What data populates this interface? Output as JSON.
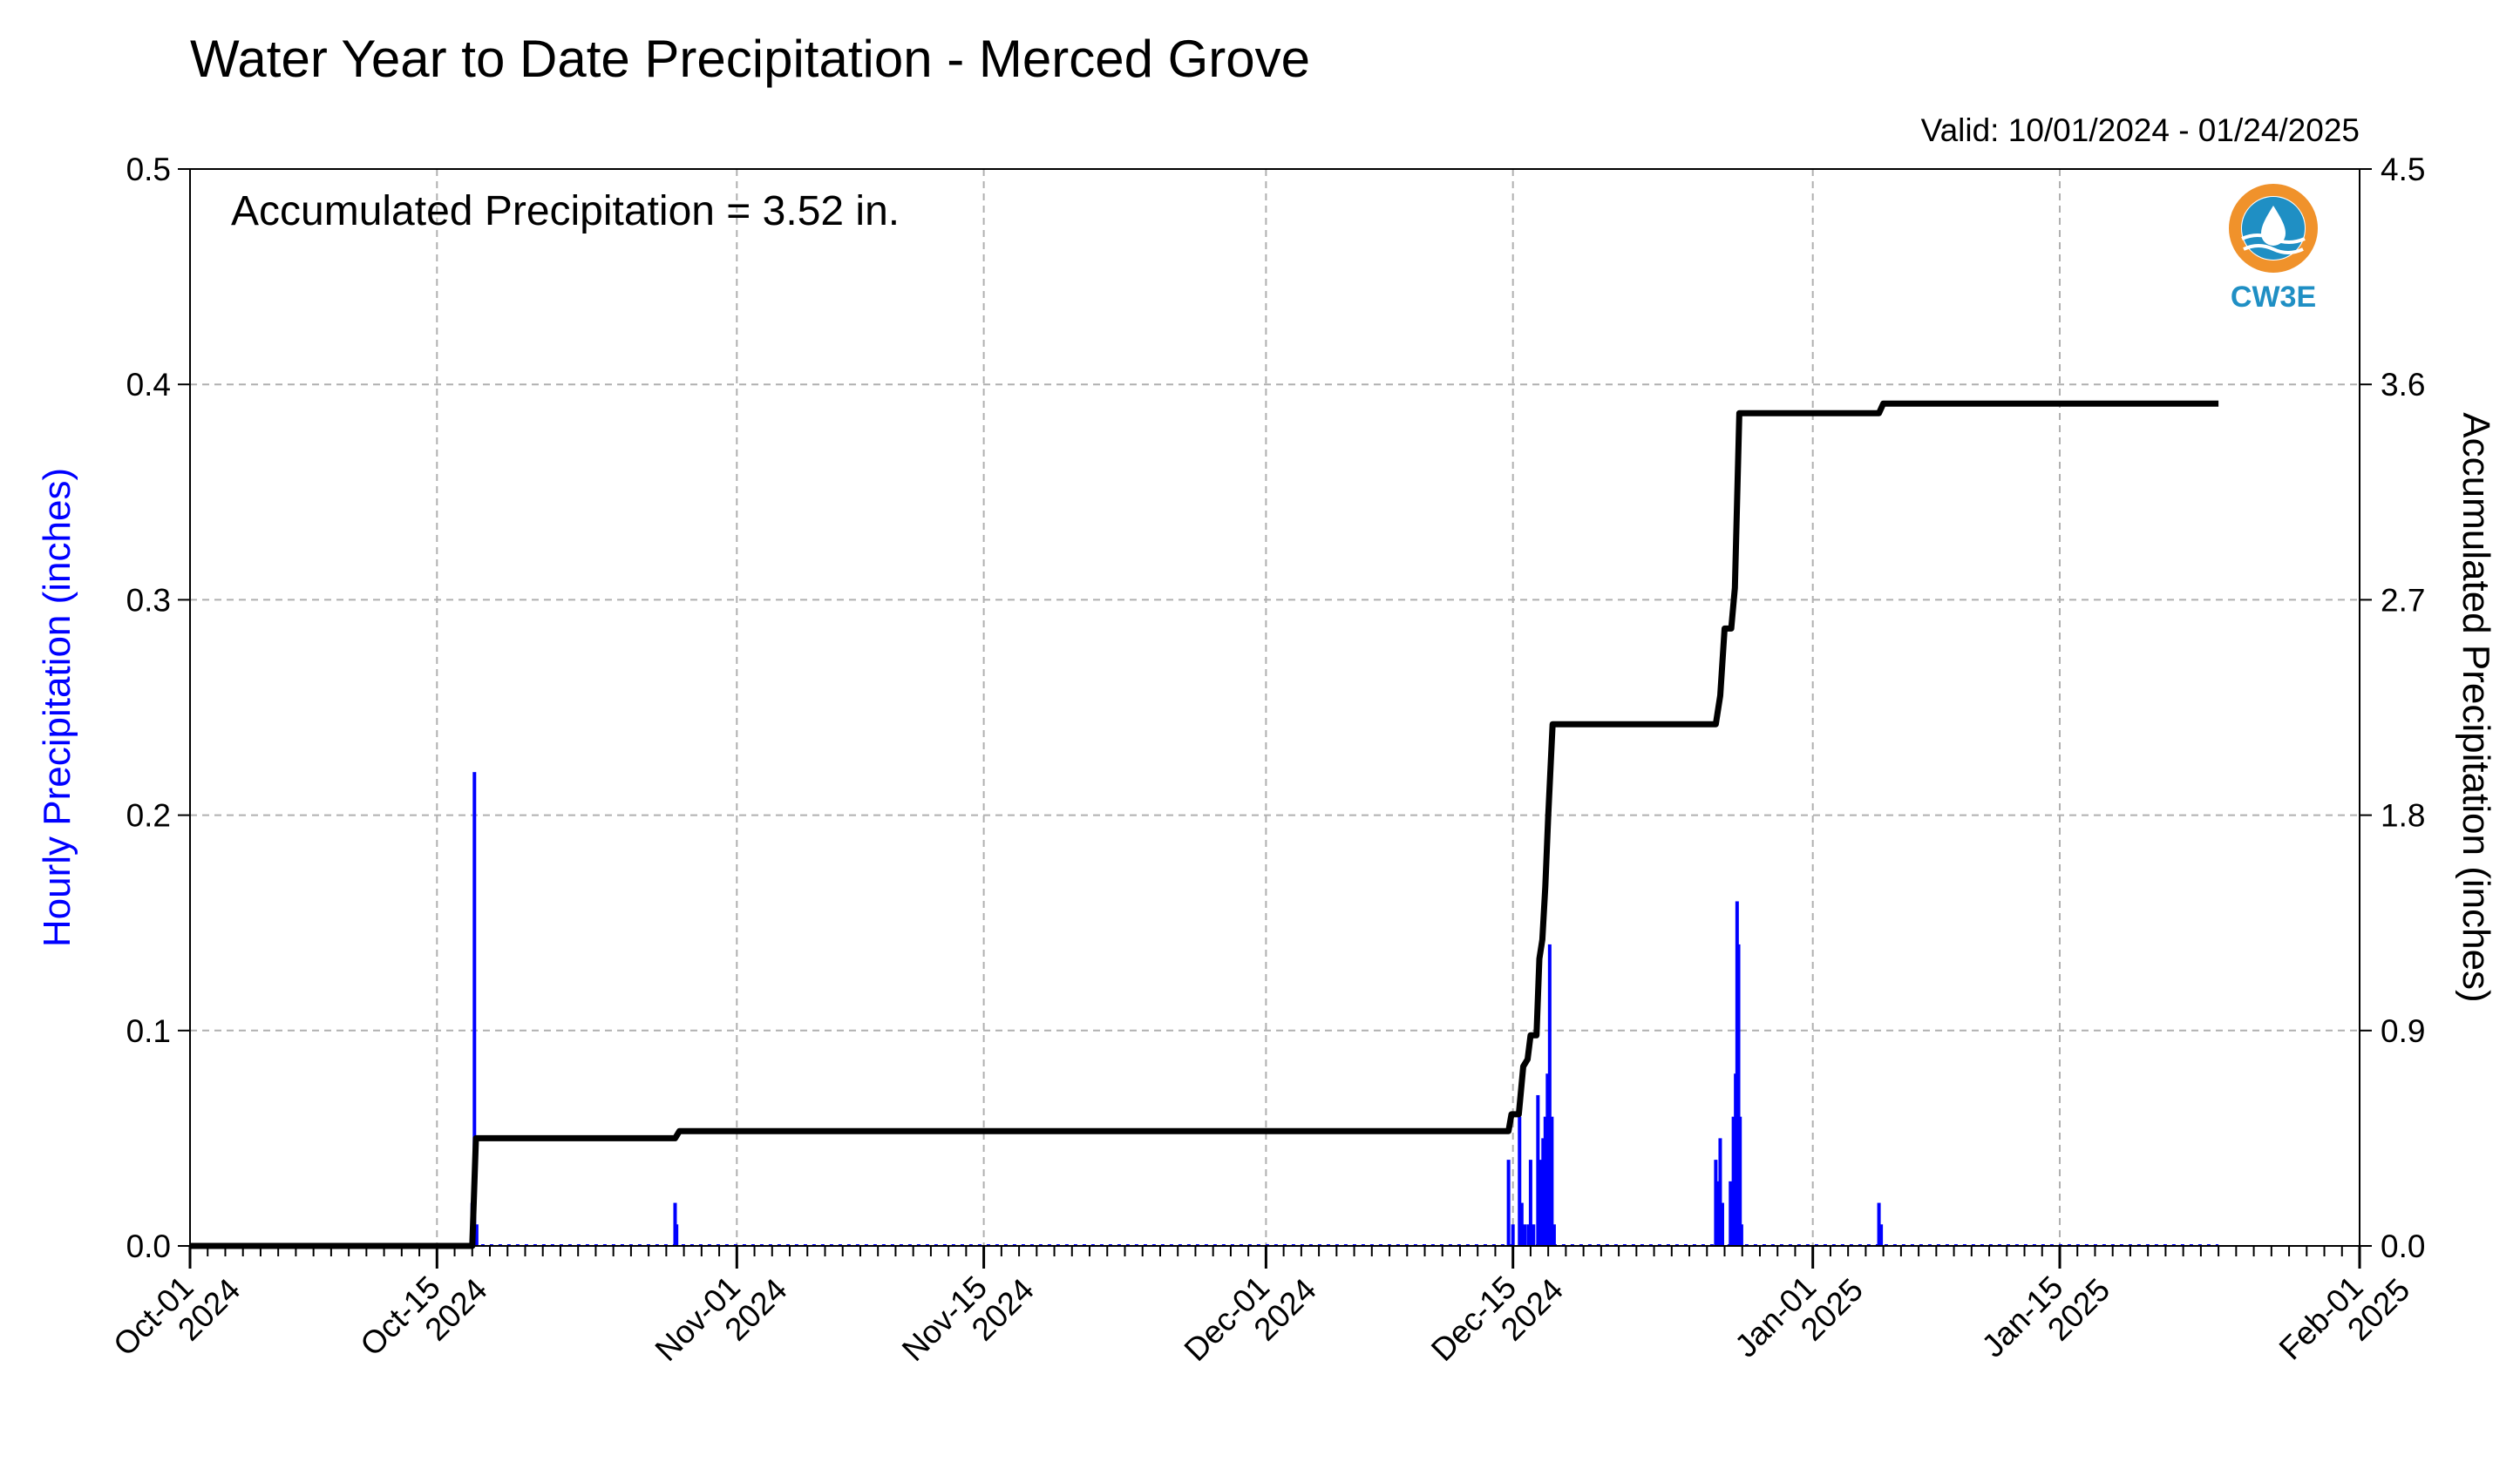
{
  "page": {
    "title": "Water Year to Date Precipitation - Merced Grove",
    "valid_text": "Valid: 10/01/2024 - 01/24/2025",
    "annotation": "Accumulated Precipitation = 3.52 in.",
    "logo_text": "CW3E"
  },
  "colors": {
    "bars": "#0000ff",
    "accum_line": "#000000",
    "grid": "#b0b0b0",
    "left_axis_label": "#0000ff",
    "logo_orange": "#f0922b",
    "logo_blue": "#1f8fc4"
  },
  "chart_data": {
    "type": "bar",
    "x_axis": {
      "type": "date",
      "range": [
        "2024-10-01",
        "2025-02-01"
      ],
      "major_ticks": [
        "2024-10-01",
        "2024-10-15",
        "2024-11-01",
        "2024-11-15",
        "2024-12-01",
        "2024-12-15",
        "2025-01-01",
        "2025-01-15",
        "2025-02-01"
      ],
      "major_tick_labels": [
        [
          "Oct-01",
          "2024"
        ],
        [
          "Oct-15",
          "2024"
        ],
        [
          "Nov-01",
          "2024"
        ],
        [
          "Nov-15",
          "2024"
        ],
        [
          "Dec-01",
          "2024"
        ],
        [
          "Dec-15",
          "2024"
        ],
        [
          "Jan-01",
          "2025"
        ],
        [
          "Jan-15",
          "2025"
        ],
        [
          "Feb-01",
          "2025"
        ]
      ],
      "minor_ticks": "daily"
    },
    "y_left": {
      "label": "Hourly Precipitation (inches)",
      "range": [
        0.0,
        0.5
      ],
      "ticks": [
        0.0,
        0.1,
        0.2,
        0.3,
        0.4,
        0.5
      ],
      "tick_labels": [
        "0.0",
        "0.1",
        "0.2",
        "0.3",
        "0.4",
        "0.5"
      ]
    },
    "y_right": {
      "label": "Accumulated Precipitation (inches)",
      "range": [
        0.0,
        4.5
      ],
      "ticks": [
        0.0,
        0.9,
        1.8,
        2.7,
        3.6,
        4.5
      ],
      "tick_labels": [
        "0.0",
        "0.9",
        "1.8",
        "2.7",
        "3.6",
        "4.5"
      ]
    },
    "grid": true,
    "series": [
      {
        "name": "Hourly Precipitation",
        "kind": "bar",
        "axis": "left",
        "data_end": "2025-01-24",
        "points": [
          [
            "2024-10-17T00:00",
            0.02
          ],
          [
            "2024-10-17T03:00",
            0.22
          ],
          [
            "2024-10-17T06:00",
            0.01
          ],
          [
            "2024-10-28T12:00",
            0.02
          ],
          [
            "2024-10-28T14:00",
            0.01
          ],
          [
            "2024-12-14T18:00",
            0.04
          ],
          [
            "2024-12-15T00:00",
            0.01
          ],
          [
            "2024-12-15T09:00",
            0.06
          ],
          [
            "2024-12-15T12:00",
            0.02
          ],
          [
            "2024-12-15T16:00",
            0.01
          ],
          [
            "2024-12-15T21:00",
            0.01
          ],
          [
            "2024-12-16T00:00",
            0.04
          ],
          [
            "2024-12-16T04:00",
            0.01
          ],
          [
            "2024-12-16T10:00",
            0.07
          ],
          [
            "2024-12-16T14:00",
            0.04
          ],
          [
            "2024-12-16T17:00",
            0.05
          ],
          [
            "2024-12-16T20:00",
            0.06
          ],
          [
            "2024-12-16T23:00",
            0.08
          ],
          [
            "2024-12-17T02:00",
            0.14
          ],
          [
            "2024-12-17T05:00",
            0.06
          ],
          [
            "2024-12-17T08:00",
            0.01
          ],
          [
            "2024-12-26T12:00",
            0.04
          ],
          [
            "2024-12-26T15:00",
            0.03
          ],
          [
            "2024-12-26T18:00",
            0.05
          ],
          [
            "2024-12-26T21:00",
            0.02
          ],
          [
            "2024-12-27T08:00",
            0.03
          ],
          [
            "2024-12-27T12:00",
            0.06
          ],
          [
            "2024-12-27T15:00",
            0.08
          ],
          [
            "2024-12-27T17:00",
            0.16
          ],
          [
            "2024-12-27T19:00",
            0.14
          ],
          [
            "2024-12-27T21:00",
            0.06
          ],
          [
            "2024-12-27T23:00",
            0.01
          ],
          [
            "2025-01-04T18:00",
            0.02
          ],
          [
            "2025-01-04T21:00",
            0.01
          ]
        ]
      },
      {
        "name": "Accumulated Precipitation",
        "kind": "line",
        "axis": "right",
        "points": [
          [
            "2024-10-01T00:00",
            0.0
          ],
          [
            "2024-10-17T00:00",
            0.0
          ],
          [
            "2024-10-17T05:00",
            0.45
          ],
          [
            "2024-10-28T12:00",
            0.45
          ],
          [
            "2024-10-28T18:00",
            0.48
          ],
          [
            "2024-12-14T18:00",
            0.48
          ],
          [
            "2024-12-14T22:00",
            0.55
          ],
          [
            "2024-12-15T08:00",
            0.55
          ],
          [
            "2024-12-15T14:00",
            0.75
          ],
          [
            "2024-12-15T20:00",
            0.78
          ],
          [
            "2024-12-16T00:00",
            0.88
          ],
          [
            "2024-12-16T08:00",
            0.88
          ],
          [
            "2024-12-16T12:00",
            1.2
          ],
          [
            "2024-12-16T16:00",
            1.28
          ],
          [
            "2024-12-16T20:00",
            1.5
          ],
          [
            "2024-12-17T00:00",
            1.8
          ],
          [
            "2024-12-17T06:00",
            2.18
          ],
          [
            "2024-12-26T12:00",
            2.18
          ],
          [
            "2024-12-26T18:00",
            2.3
          ],
          [
            "2024-12-27T00:00",
            2.58
          ],
          [
            "2024-12-27T09:00",
            2.58
          ],
          [
            "2024-12-27T14:00",
            2.75
          ],
          [
            "2024-12-27T20:00",
            3.48
          ],
          [
            "2025-01-04T18:00",
            3.48
          ],
          [
            "2025-01-05T00:00",
            3.52
          ],
          [
            "2025-01-24T00:00",
            3.52
          ]
        ]
      }
    ]
  }
}
